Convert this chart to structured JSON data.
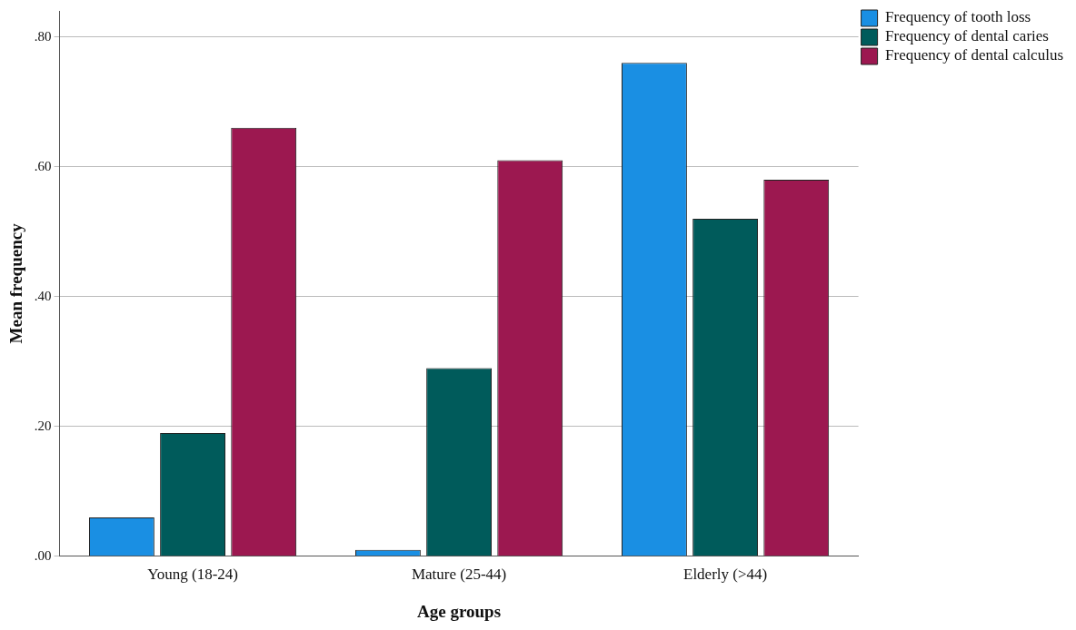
{
  "chart_data": {
    "type": "bar",
    "xlabel": "Age groups",
    "ylabel": "Mean frequency",
    "categories": [
      "Young (18-24)",
      "Mature (25-44)",
      "Elderly (>44)"
    ],
    "series": [
      {
        "name": "Frequency of tooth loss",
        "color": "#1a8fe3",
        "values": [
          0.06,
          0.01,
          0.76
        ]
      },
      {
        "name": "Frequency of dental caries",
        "color": "#005b5b",
        "values": [
          0.19,
          0.29,
          0.52
        ]
      },
      {
        "name": "Frequency of dental calculus",
        "color": "#9c1850",
        "values": [
          0.66,
          0.61,
          0.58
        ]
      }
    ],
    "ylim": [
      0,
      0.84
    ],
    "yticks": [
      {
        "value": 0,
        "label": ".00"
      },
      {
        "value": 0.2,
        "label": ".20"
      },
      {
        "value": 0.4,
        "label": ".40"
      },
      {
        "value": 0.6,
        "label": ".60"
      },
      {
        "value": 0.8,
        "label": ".80"
      }
    ],
    "grid": "y",
    "legend": "top right"
  }
}
